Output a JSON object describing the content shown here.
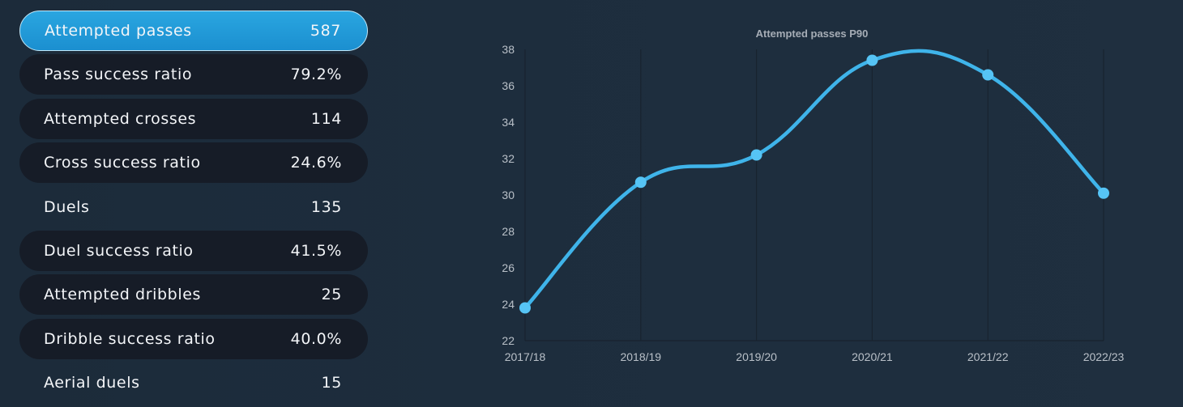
{
  "stats": [
    {
      "label": "Attempted passes",
      "value": "587",
      "style": "active"
    },
    {
      "label": "Pass success ratio",
      "value": "79.2%",
      "style": "pill"
    },
    {
      "label": "Attempted crosses",
      "value": "114",
      "style": "pill"
    },
    {
      "label": "Cross success ratio",
      "value": "24.6%",
      "style": "pill"
    },
    {
      "label": "Duels",
      "value": "135",
      "style": "plain"
    },
    {
      "label": "Duel success ratio",
      "value": "41.5%",
      "style": "pill"
    },
    {
      "label": "Attempted dribbles",
      "value": "25",
      "style": "pill"
    },
    {
      "label": "Dribble success ratio",
      "value": "40.0%",
      "style": "pill"
    },
    {
      "label": "Aerial duels",
      "value": "15",
      "style": "plain"
    }
  ],
  "chart_data": {
    "type": "line",
    "title": "Attempted passes P90",
    "categories": [
      "2017/18",
      "2018/19",
      "2019/20",
      "2020/21",
      "2021/22",
      "2022/23"
    ],
    "series": [
      {
        "values": [
          23.8,
          30.7,
          32.2,
          37.4,
          36.6,
          30.1
        ]
      }
    ],
    "ylim": [
      22,
      38
    ],
    "yticks": [
      22,
      24,
      26,
      28,
      30,
      32,
      34,
      36,
      38
    ],
    "xlabel": "",
    "ylabel": "",
    "grid": "vertical",
    "smooth": true,
    "line_color": "#3fb4ea",
    "point_color": "#56c4f5"
  }
}
